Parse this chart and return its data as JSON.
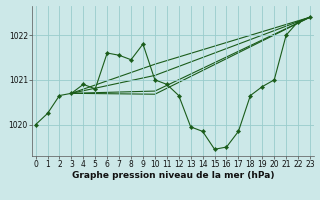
{
  "xlabel": "Graphe pression niveau de la mer (hPa)",
  "background_color": "#cce8e8",
  "grid_color": "#99cccc",
  "line_color": "#1a5c1a",
  "marker_color": "#1a5c1a",
  "main_curve": {
    "x": [
      0,
      1,
      2,
      3,
      4,
      5,
      6,
      7,
      8,
      9,
      10,
      11,
      12,
      13,
      14,
      15,
      16,
      17,
      18,
      19,
      20,
      21,
      22,
      23
    ],
    "y": [
      1020.0,
      1020.25,
      1020.65,
      1020.7,
      1020.9,
      1020.8,
      1021.6,
      1021.55,
      1021.45,
      1021.8,
      1021.0,
      1020.9,
      1020.65,
      1019.95,
      1019.85,
      1019.45,
      1019.5,
      1019.85,
      1020.65,
      1020.85,
      1021.0,
      1022.0,
      1022.3,
      1022.4
    ]
  },
  "fan_lines": [
    {
      "x": [
        3,
        10,
        23
      ],
      "y": [
        1020.7,
        1021.35,
        1022.4
      ]
    },
    {
      "x": [
        3,
        10,
        23
      ],
      "y": [
        1020.7,
        1021.1,
        1022.4
      ]
    },
    {
      "x": [
        3,
        10,
        23
      ],
      "y": [
        1020.7,
        1020.75,
        1022.4
      ]
    },
    {
      "x": [
        3,
        10,
        23
      ],
      "y": [
        1020.7,
        1020.68,
        1022.4
      ]
    }
  ],
  "ylim": [
    1019.3,
    1022.65
  ],
  "yticks": [
    1020,
    1021,
    1022
  ],
  "xlim": [
    -0.3,
    23.3
  ],
  "xticks": [
    0,
    1,
    2,
    3,
    4,
    5,
    6,
    7,
    8,
    9,
    10,
    11,
    12,
    13,
    14,
    15,
    16,
    17,
    18,
    19,
    20,
    21,
    22,
    23
  ],
  "tick_fontsize": 5.5,
  "xlabel_fontsize": 6.5
}
